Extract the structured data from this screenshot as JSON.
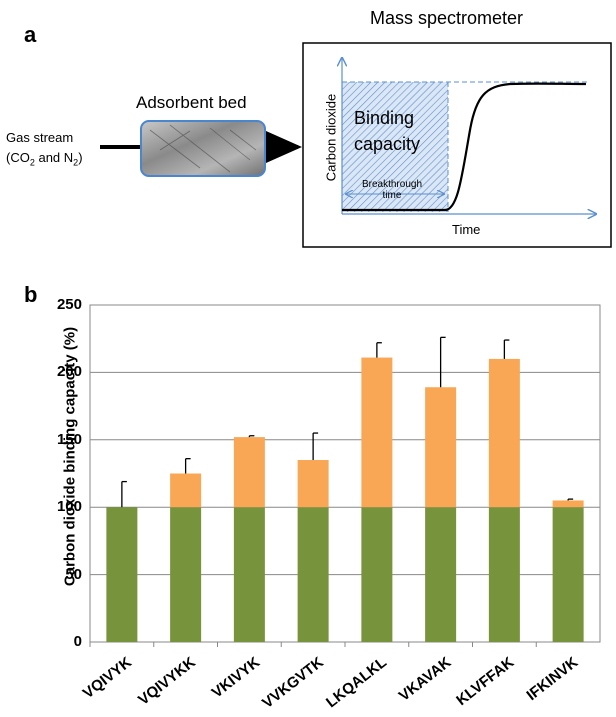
{
  "panel_a": {
    "label": "a",
    "ms_title": "Mass spectrometer",
    "bed_title": "Adsorbent bed",
    "gas_line1": "Gas stream",
    "gas_line2_prefix": "(CO",
    "gas_line2_mid": " and N",
    "gas_line2_suffix": ")",
    "subscript": "2",
    "ms_ylabel": "Carbon dioxide",
    "ms_xlabel": "Time",
    "binding_line1": "Binding",
    "binding_line2": "capacity",
    "breakthrough_line1": "Breakthrough",
    "breakthrough_line2": "time",
    "colors": {
      "hatch": "#5b8fd0",
      "hatch_bg": "#dbe7f5",
      "bed_border": "#4a86d0",
      "dashes": "#5b8fd0"
    }
  },
  "panel_b": {
    "label": "b"
  },
  "chart_data": {
    "type": "bar",
    "stacked": true,
    "categories": [
      "VQIVYK",
      "VQIVYKK",
      "VKIVYK",
      "VVKGVTK",
      "LKQALKL",
      "VKAVAK",
      "KLVFFAK",
      "IFKINVK"
    ],
    "series": [
      {
        "values": [
          100,
          100,
          100,
          100,
          100,
          100,
          100,
          100
        ],
        "color": "#77933c"
      },
      {
        "values": [
          0,
          25,
          52,
          35,
          111,
          89,
          110,
          5
        ],
        "color": "#f9a755"
      }
    ],
    "totals": [
      100,
      125,
      152,
      135,
      211,
      189,
      210,
      105
    ],
    "error_upper": [
      119,
      136,
      153,
      155,
      222,
      226,
      224,
      106
    ],
    "ylabel": "Carbon dioxide binding capacity (%)",
    "ylim": [
      0,
      250
    ],
    "yticks": [
      0,
      50,
      100,
      150,
      200,
      250
    ],
    "grid": true
  }
}
